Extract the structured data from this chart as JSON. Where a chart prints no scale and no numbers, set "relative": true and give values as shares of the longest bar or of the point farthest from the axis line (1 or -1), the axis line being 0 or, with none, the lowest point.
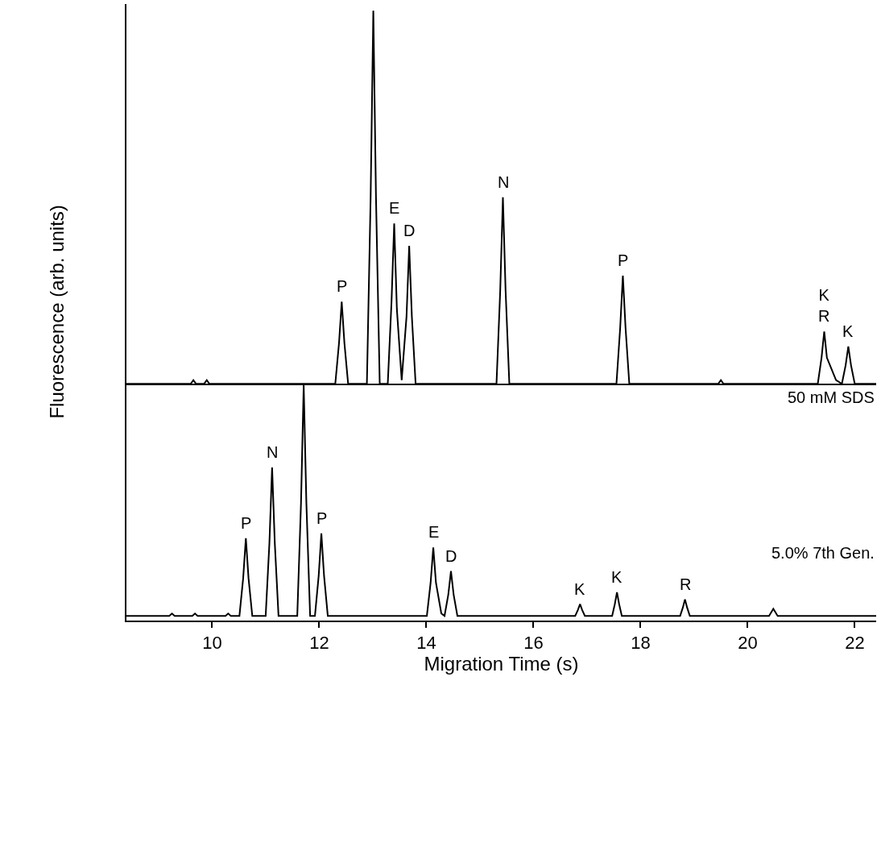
{
  "chart_data": [
    {
      "type": "line",
      "relative": true,
      "ylabel": "Fluorescence (arb. units)",
      "xlim": [
        8.4,
        22.4
      ],
      "tick_labels": false,
      "grid": false,
      "marker": "none",
      "line_style": "solid",
      "x": [
        8.4,
        9.6,
        9.65,
        9.7,
        9.85,
        9.9,
        9.95,
        12.3,
        12.37,
        12.42,
        12.47,
        12.54,
        12.89,
        12.96,
        13.01,
        13.06,
        13.13,
        13.28,
        13.35,
        13.4,
        13.45,
        13.54,
        13.63,
        13.68,
        13.73,
        13.8,
        15.31,
        15.38,
        15.43,
        15.48,
        15.55,
        17.55,
        17.62,
        17.67,
        17.72,
        17.79,
        19.45,
        19.5,
        19.55,
        21.31,
        21.38,
        21.43,
        21.48,
        21.65,
        21.76,
        21.83,
        21.88,
        21.93,
        22.0,
        22.4
      ],
      "series": [
        {
          "color": "#000000",
          "values": [
            0,
            0,
            0.01,
            0,
            0,
            0.01,
            0,
            0,
            0.11,
            0.22,
            0.11,
            0,
            0,
            0.5,
            1.0,
            0.5,
            0,
            0,
            0.22,
            0.43,
            0.2,
            0.01,
            0.18,
            0.37,
            0.18,
            0,
            0,
            0.25,
            0.5,
            0.25,
            0,
            0,
            0.15,
            0.29,
            0.15,
            0,
            0,
            0.01,
            0,
            0,
            0.07,
            0.14,
            0.07,
            0.01,
            0,
            0.05,
            0.1,
            0.05,
            0,
            0
          ]
        }
      ],
      "annotations": [
        {
          "text": "P",
          "x": 12.42,
          "y": 0.22
        },
        {
          "text": "E",
          "x": 13.4,
          "y": 0.43
        },
        {
          "text": "D",
          "x": 13.68,
          "y": 0.37
        },
        {
          "text": "N",
          "x": 15.43,
          "y": 0.5
        },
        {
          "text": "P",
          "x": 17.67,
          "y": 0.29
        },
        {
          "text": "K\nR",
          "x": 21.43,
          "y": 0.14
        },
        {
          "text": "K",
          "x": 21.88,
          "y": 0.1
        }
      ]
    },
    {
      "type": "line",
      "relative": true,
      "xlabel": "Migration Time (s)",
      "xlim": [
        8.4,
        22.4
      ],
      "xticks": [
        10,
        12,
        14,
        16,
        18,
        20,
        22
      ],
      "tick_labels": "x",
      "grid": false,
      "marker": "none",
      "line_style": "solid",
      "x": [
        8.4,
        9.2,
        9.25,
        9.3,
        9.63,
        9.68,
        9.73,
        10.25,
        10.3,
        10.35,
        10.51,
        10.58,
        10.63,
        10.68,
        10.75,
        11.0,
        11.07,
        11.12,
        11.17,
        11.24,
        11.59,
        11.66,
        11.71,
        11.76,
        11.83,
        11.92,
        11.99,
        12.04,
        12.09,
        12.16,
        14.01,
        14.08,
        14.13,
        14.18,
        14.28,
        14.34,
        14.41,
        14.46,
        14.51,
        14.58,
        16.78,
        16.83,
        16.87,
        16.91,
        16.96,
        17.47,
        17.52,
        17.56,
        17.6,
        17.65,
        18.74,
        18.79,
        18.83,
        18.87,
        18.92,
        20.4,
        20.48,
        20.56,
        22.4
      ],
      "series": [
        {
          "color": "#000000",
          "values": [
            0.02,
            0.02,
            0.03,
            0.02,
            0.02,
            0.03,
            0.02,
            0.02,
            0.03,
            0.02,
            0.02,
            0.18,
            0.35,
            0.18,
            0.02,
            0.02,
            0.33,
            0.65,
            0.33,
            0.02,
            0.02,
            0.5,
            1.0,
            0.5,
            0.02,
            0.02,
            0.19,
            0.37,
            0.19,
            0.02,
            0.02,
            0.16,
            0.31,
            0.16,
            0.03,
            0.02,
            0.11,
            0.21,
            0.11,
            0.02,
            0.02,
            0.045,
            0.07,
            0.045,
            0.02,
            0.02,
            0.07,
            0.12,
            0.07,
            0.02,
            0.02,
            0.055,
            0.09,
            0.055,
            0.02,
            0.02,
            0.05,
            0.02,
            0.02
          ]
        }
      ],
      "annotations": [
        "50 mM SDS",
        "5.0% 7th Gen.",
        {
          "text": "P",
          "x": 10.63,
          "y": 0.35
        },
        {
          "text": "N",
          "x": 11.12,
          "y": 0.65
        },
        {
          "text": "P",
          "x": 12.04,
          "y": 0.37
        },
        {
          "text": "E",
          "x": 14.13,
          "y": 0.31
        },
        {
          "text": "D",
          "x": 14.46,
          "y": 0.21
        },
        {
          "text": "K",
          "x": 16.87,
          "y": 0.07
        },
        {
          "text": "K",
          "x": 17.56,
          "y": 0.12
        },
        {
          "text": "R",
          "x": 18.83,
          "y": 0.09
        }
      ]
    }
  ]
}
